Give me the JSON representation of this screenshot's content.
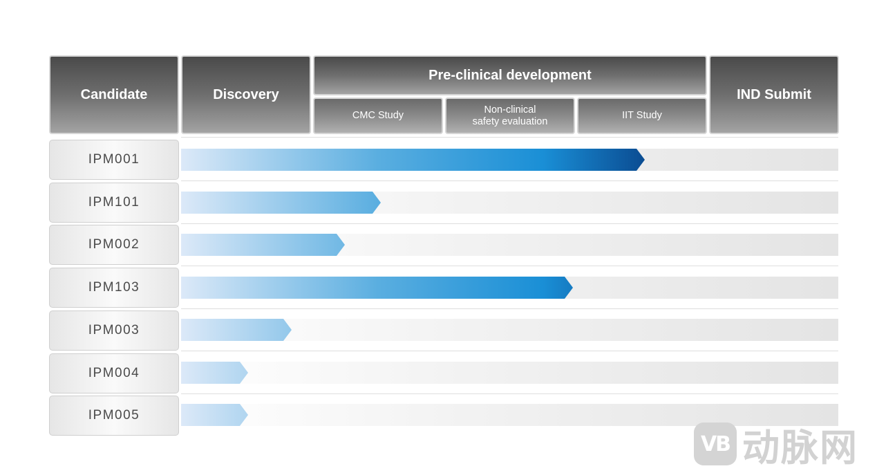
{
  "header": {
    "candidate": "Candidate",
    "discovery": "Discovery",
    "preclinical": "Pre-clinical development",
    "cmc": "CMC Study",
    "nonclinical": "Non-clinical\nsafety evaluation",
    "iit": "IIT Study",
    "ind": "IND Submit"
  },
  "candidates": [
    {
      "name": "IPM001",
      "progress": 0.706
    },
    {
      "name": "IPM101",
      "progress": 0.304
    },
    {
      "name": "IPM002",
      "progress": 0.249
    },
    {
      "name": "IPM103",
      "progress": 0.596
    },
    {
      "name": "IPM003",
      "progress": 0.168
    },
    {
      "name": "IPM004",
      "progress": 0.102
    },
    {
      "name": "IPM005",
      "progress": 0.102
    }
  ],
  "watermark": {
    "logo": "VB",
    "text": "动脉网"
  },
  "colors": {
    "bar_start": "#dce9f8",
    "bar_mid": "#5aaee0",
    "bar_deep": "#1a8fd6",
    "bar_end": "#0a4a90"
  }
}
